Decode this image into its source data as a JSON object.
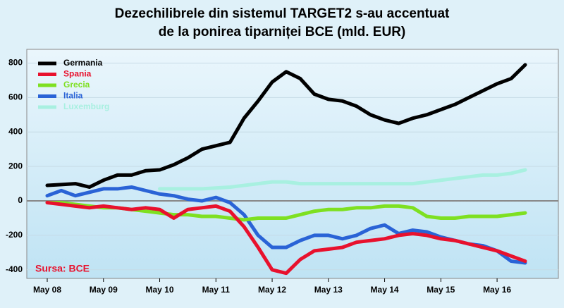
{
  "chart_data": {
    "type": "line",
    "title": [
      "Dezechilibrele din sistemul TARGET2 s-au accentuat",
      "de la ponirea tiparniței BCE (mld. EUR)"
    ],
    "annotation": "Sursa: BCE",
    "categories": [
      "May 08",
      null,
      null,
      null,
      "May 09",
      null,
      null,
      null,
      "May 10",
      null,
      null,
      null,
      "May 11",
      null,
      null,
      null,
      "May 12",
      null,
      null,
      null,
      "May 13",
      null,
      null,
      null,
      "May 14",
      null,
      null,
      null,
      "May 15",
      null,
      null,
      null,
      "May 16",
      null,
      null
    ],
    "series": [
      {
        "name": "Germania",
        "color": "#000000",
        "values": [
          90,
          95,
          100,
          80,
          120,
          150,
          150,
          175,
          180,
          210,
          250,
          300,
          320,
          340,
          480,
          580,
          690,
          750,
          710,
          620,
          590,
          580,
          550,
          500,
          470,
          450,
          480,
          500,
          530,
          560,
          600,
          640,
          680,
          710,
          790
        ]
      },
      {
        "name": "Spania",
        "color": "#e8112d",
        "values": [
          -10,
          -20,
          -30,
          -40,
          -30,
          -40,
          -50,
          -40,
          -50,
          -100,
          -50,
          -40,
          -30,
          -60,
          -150,
          -270,
          -400,
          -420,
          -340,
          -290,
          -280,
          -270,
          -240,
          -230,
          -220,
          -200,
          -190,
          -200,
          -220,
          -230,
          -250,
          -270,
          -290,
          -320,
          -350
        ]
      },
      {
        "name": "Grecia",
        "color": "#7ee021",
        "values": [
          -10,
          -10,
          -20,
          -30,
          -40,
          -40,
          -50,
          -60,
          -70,
          -80,
          -80,
          -90,
          -90,
          -100,
          -110,
          -100,
          -100,
          -100,
          -80,
          -60,
          -50,
          -50,
          -40,
          -40,
          -30,
          -30,
          -40,
          -90,
          -100,
          -100,
          -90,
          -90,
          -90,
          -80,
          -70
        ]
      },
      {
        "name": "Italia",
        "color": "#2a63d6",
        "values": [
          30,
          60,
          30,
          50,
          70,
          70,
          80,
          60,
          40,
          30,
          10,
          0,
          20,
          -10,
          -80,
          -200,
          -270,
          -270,
          -230,
          -200,
          -200,
          -220,
          -200,
          -160,
          -140,
          -190,
          -170,
          -180,
          -210,
          -230,
          -250,
          -260,
          -290,
          -350,
          -360
        ]
      },
      {
        "name": "Luxemburg",
        "color": "#a8f0e0",
        "values": [
          null,
          null,
          null,
          null,
          null,
          null,
          null,
          null,
          70,
          70,
          70,
          70,
          75,
          80,
          90,
          100,
          110,
          110,
          100,
          100,
          100,
          100,
          100,
          100,
          100,
          100,
          100,
          110,
          120,
          130,
          140,
          150,
          150,
          160,
          180
        ]
      }
    ],
    "ylim": [
      -450,
      880
    ],
    "yticks": [
      -400,
      -200,
      0,
      200,
      400,
      600,
      800
    ],
    "grid": true,
    "legend": "top-left"
  }
}
